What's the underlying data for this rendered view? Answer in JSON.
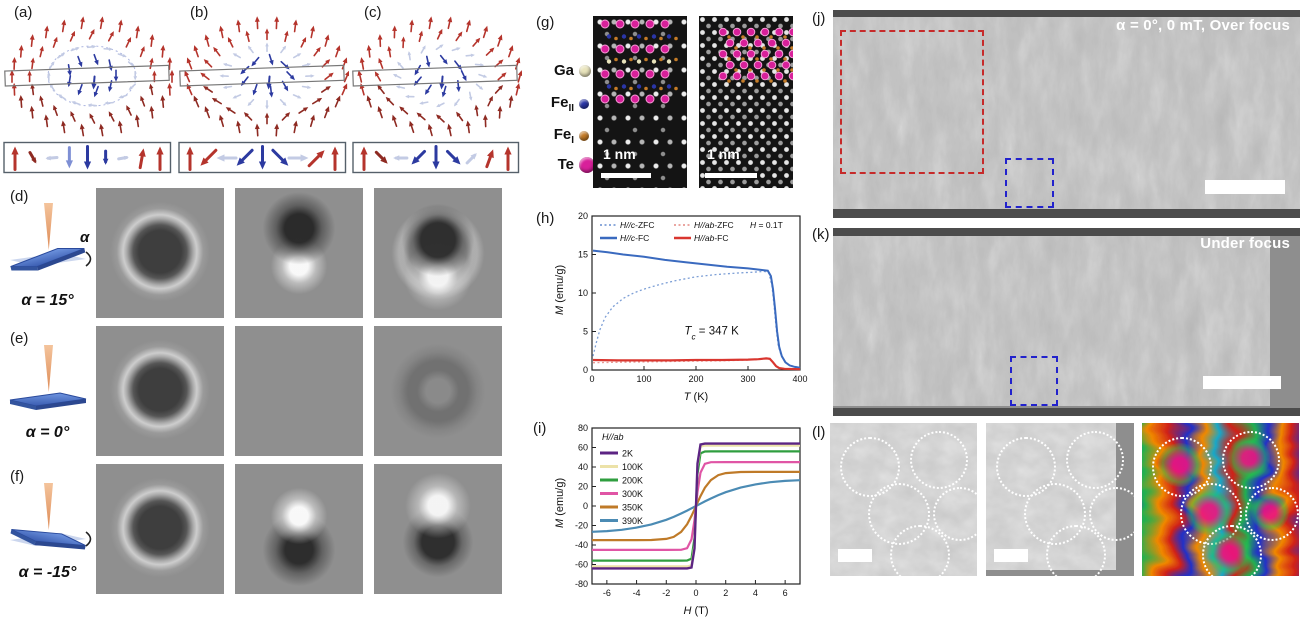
{
  "labels": {
    "a": "(a)",
    "b": "(b)",
    "c": "(c)",
    "d": "(d)",
    "e": "(e)",
    "f": "(f)",
    "g": "(g)",
    "h": "(h)",
    "i": "(i)",
    "j": "(j)",
    "k": "(k)",
    "l": "(l)"
  },
  "colors": {
    "arrow_red": "#b5342c",
    "arrow_darkred": "#8e2a22",
    "arrow_blue": "#2c3aa0",
    "arrow_lightblue": "#7e8fd4",
    "arrow_faint": "#c3cbe4",
    "slab_blue": "#4a72c4",
    "beam_orange": "#e8a070",
    "box_red": "#c62a2a",
    "box_blue": "#2222cc"
  },
  "spin_panels": [
    {
      "id": "a",
      "type": "bloch",
      "strip": [
        {
          "ang": 0,
          "c": "red",
          "s": 1
        },
        {
          "ang": 150,
          "c": "darkred",
          "s": 0.55
        },
        {
          "ang": 265,
          "c": "faint",
          "s": 0.5
        },
        {
          "ang": 180,
          "c": "lightblue",
          "s": 0.9
        },
        {
          "ang": 180,
          "c": "blue",
          "s": 1
        },
        {
          "ang": 180,
          "c": "blue",
          "s": 0.6
        },
        {
          "ang": 80,
          "c": "faint",
          "s": 0.45
        },
        {
          "ang": 10,
          "c": "red",
          "s": 0.85
        },
        {
          "ang": 0,
          "c": "red",
          "s": 1
        }
      ]
    },
    {
      "id": "b",
      "type": "neel",
      "strip": [
        {
          "ang": 0,
          "c": "red",
          "s": 1
        },
        {
          "ang": 225,
          "c": "red",
          "s": 0.95
        },
        {
          "ang": 270,
          "c": "faint",
          "s": 0.85
        },
        {
          "ang": 225,
          "c": "blue",
          "s": 0.95
        },
        {
          "ang": 180,
          "c": "blue",
          "s": 1
        },
        {
          "ang": 135,
          "c": "blue",
          "s": 0.95
        },
        {
          "ang": 90,
          "c": "faint",
          "s": 0.85
        },
        {
          "ang": 45,
          "c": "red",
          "s": 0.95
        },
        {
          "ang": 0,
          "c": "red",
          "s": 1
        }
      ]
    },
    {
      "id": "c",
      "type": "tilted",
      "strip": [
        {
          "ang": 0,
          "c": "red",
          "s": 1
        },
        {
          "ang": 135,
          "c": "darkred",
          "s": 0.7
        },
        {
          "ang": 270,
          "c": "faint",
          "s": 0.6
        },
        {
          "ang": 225,
          "c": "blue",
          "s": 0.8
        },
        {
          "ang": 180,
          "c": "blue",
          "s": 1
        },
        {
          "ang": 135,
          "c": "blue",
          "s": 0.8
        },
        {
          "ang": 45,
          "c": "faint",
          "s": 0.6
        },
        {
          "ang": 20,
          "c": "red",
          "s": 0.8
        },
        {
          "ang": 0,
          "c": "red",
          "s": 1
        }
      ]
    }
  ],
  "tilt_rows": [
    {
      "label": "(d)",
      "alpha_text": "α = 15°",
      "alpha_symbol": "α",
      "tilt_deg": -13
    },
    {
      "label": "(e)",
      "alpha_text": "α = 0°",
      "alpha_symbol": "",
      "tilt_deg": 0
    },
    {
      "label": "(f)",
      "alpha_text": "α = -15°",
      "alpha_symbol": "",
      "tilt_deg": 13
    }
  ],
  "sim_grid": [
    [
      "ring",
      "dipole-dark-top",
      "ring-dark-top"
    ],
    [
      "ring",
      "flat",
      "donut-faint"
    ],
    [
      "ring",
      "dipole-bright-top",
      "ring-bright-top"
    ]
  ],
  "stem": {
    "atoms": [
      {
        "name": "Ga",
        "sub": "",
        "color": "#e9e4bc"
      },
      {
        "name": "Fe",
        "sub": "II",
        "color": "#2b36a8"
      },
      {
        "name": "Fe",
        "sub": "I",
        "color": "#c57c28"
      },
      {
        "name": "Te",
        "sub": "",
        "color": "#d8209a"
      }
    ],
    "scalebar_left": "1 nm",
    "scalebar_right": "1 nm"
  },
  "chart_data": [
    {
      "type": "line",
      "id": "h",
      "x_range": [
        0,
        400
      ],
      "y_range": [
        0,
        20
      ],
      "x_ticks": [
        0,
        100,
        200,
        300,
        400
      ],
      "y_ticks": [
        0,
        5,
        10,
        15,
        20
      ],
      "xlabel_parts": [
        [
          "T",
          "i"
        ],
        [
          " (K)",
          "n"
        ]
      ],
      "ylabel_parts": [
        [
          "M",
          "i"
        ],
        [
          " (emu/g)",
          "n"
        ]
      ],
      "legend": {
        "layout": "grid2",
        "note_parts": [
          [
            "H",
            "i"
          ],
          [
            " = 0.1T",
            "n"
          ]
        ]
      },
      "annotations": [
        {
          "x": 230,
          "y": 4.6,
          "parts": [
            [
              "T",
              "i"
            ],
            [
              "c",
              "sub"
            ],
            [
              " = 347 K",
              "n"
            ]
          ]
        }
      ],
      "series": [
        {
          "parts": [
            [
              "H//c",
              "i"
            ],
            [
              "-ZFC",
              "n"
            ]
          ],
          "color": "#7d9fd6",
          "dash": "2 2.5",
          "lw": 1.3,
          "legend_cell": [
            0,
            0
          ],
          "points": [
            [
              2,
              1.8
            ],
            [
              8,
              3.5
            ],
            [
              15,
              5.2
            ],
            [
              25,
              6.8
            ],
            [
              40,
              8.2
            ],
            [
              60,
              9.3
            ],
            [
              80,
              10.0
            ],
            [
              100,
              10.5
            ],
            [
              130,
              11.1
            ],
            [
              160,
              11.6
            ],
            [
              200,
              12.1
            ],
            [
              240,
              12.4
            ],
            [
              280,
              12.6
            ],
            [
              310,
              12.7
            ],
            [
              332,
              12.8
            ],
            [
              340,
              12.6
            ],
            [
              346,
              11.0
            ],
            [
              350,
              8.5
            ],
            [
              354,
              5.5
            ],
            [
              358,
              3.2
            ],
            [
              364,
              1.8
            ],
            [
              372,
              1.0
            ],
            [
              380,
              0.6
            ],
            [
              400,
              0.3
            ]
          ]
        },
        {
          "parts": [
            [
              "H//ab",
              "i"
            ],
            [
              "-ZFC",
              "n"
            ]
          ],
          "color": "#e89a94",
          "dash": "2 2.5",
          "lw": 1.3,
          "legend_cell": [
            1,
            0
          ],
          "points": [
            [
              2,
              0.95
            ],
            [
              50,
              1.0
            ],
            [
              100,
              1.05
            ],
            [
              150,
              1.1
            ],
            [
              200,
              1.15
            ],
            [
              250,
              1.2
            ],
            [
              300,
              1.3
            ],
            [
              320,
              1.35
            ],
            [
              335,
              1.45
            ],
            [
              342,
              1.4
            ],
            [
              348,
              1.0
            ],
            [
              354,
              0.5
            ],
            [
              360,
              0.25
            ],
            [
              370,
              0.15
            ],
            [
              400,
              0.1
            ]
          ]
        },
        {
          "parts": [
            [
              "H//c",
              "i"
            ],
            [
              "-FC",
              "n"
            ]
          ],
          "color": "#3a6abf",
          "dash": "",
          "lw": 2,
          "legend_cell": [
            0,
            1
          ],
          "points": [
            [
              2,
              15.5
            ],
            [
              30,
              15.3
            ],
            [
              60,
              15.0
            ],
            [
              100,
              14.7
            ],
            [
              140,
              14.3
            ],
            [
              180,
              14.0
            ],
            [
              220,
              13.7
            ],
            [
              260,
              13.4
            ],
            [
              300,
              13.2
            ],
            [
              325,
              13.0
            ],
            [
              338,
              12.9
            ],
            [
              344,
              12.2
            ],
            [
              348,
              10.5
            ],
            [
              352,
              8.0
            ],
            [
              356,
              5.0
            ],
            [
              360,
              3.0
            ],
            [
              365,
              1.8
            ],
            [
              372,
              1.0
            ],
            [
              380,
              0.6
            ],
            [
              390,
              0.4
            ],
            [
              400,
              0.3
            ]
          ]
        },
        {
          "parts": [
            [
              "H//ab",
              "i"
            ],
            [
              "-FC",
              "n"
            ]
          ],
          "color": "#d9362f",
          "dash": "",
          "lw": 2.2,
          "legend_cell": [
            1,
            1
          ],
          "points": [
            [
              2,
              1.3
            ],
            [
              50,
              1.25
            ],
            [
              100,
              1.25
            ],
            [
              150,
              1.25
            ],
            [
              200,
              1.3
            ],
            [
              250,
              1.3
            ],
            [
              300,
              1.35
            ],
            [
              320,
              1.4
            ],
            [
              335,
              1.5
            ],
            [
              342,
              1.45
            ],
            [
              348,
              1.0
            ],
            [
              354,
              0.5
            ],
            [
              360,
              0.25
            ],
            [
              370,
              0.15
            ],
            [
              400,
              0.1
            ]
          ]
        }
      ]
    },
    {
      "type": "line",
      "id": "i",
      "x_range": [
        -7,
        7
      ],
      "y_range": [
        -80,
        80
      ],
      "x_ticks": [
        -6,
        -4,
        -2,
        0,
        2,
        4,
        6
      ],
      "y_ticks": [
        -80,
        -60,
        -40,
        -20,
        0,
        20,
        40,
        60,
        80
      ],
      "xlabel_parts": [
        [
          "H",
          "i"
        ],
        [
          " (T)",
          "n"
        ]
      ],
      "ylabel_parts": [
        [
          "M",
          "i"
        ],
        [
          " (emu/g)",
          "n"
        ]
      ],
      "legend": {
        "layout": "col",
        "title_parts": [
          [
            "H//ab",
            "i"
          ]
        ]
      },
      "annotations": [],
      "series": [
        {
          "parts": [
            [
              "390K",
              "n"
            ]
          ],
          "color": "#4b8bb4",
          "dash": "",
          "lw": 2.2,
          "points": [
            [
              -7,
              -26.5
            ],
            [
              -6,
              -25.7
            ],
            [
              -5,
              -24.4
            ],
            [
              -4,
              -22.2
            ],
            [
              -3,
              -18.9
            ],
            [
              -2,
              -14.2
            ],
            [
              -1.5,
              -11.2
            ],
            [
              -1,
              -7.7
            ],
            [
              -0.6,
              -4.7
            ],
            [
              -0.3,
              -2.4
            ],
            [
              0,
              0
            ],
            [
              0.3,
              2.4
            ],
            [
              0.6,
              4.7
            ],
            [
              1,
              7.7
            ],
            [
              1.5,
              11.2
            ],
            [
              2,
              14.2
            ],
            [
              3,
              18.9
            ],
            [
              4,
              22.2
            ],
            [
              5,
              24.4
            ],
            [
              6,
              25.7
            ],
            [
              7,
              26.5
            ]
          ]
        },
        {
          "parts": [
            [
              "350K",
              "n"
            ]
          ],
          "color": "#bf7a28",
          "dash": "",
          "lw": 2.2,
          "points": [
            [
              -7,
              -35
            ],
            [
              -5,
              -35
            ],
            [
              -4,
              -35
            ],
            [
              -3,
              -34.9
            ],
            [
              -2,
              -33.7
            ],
            [
              -1.5,
              -31.7
            ],
            [
              -1,
              -26.6
            ],
            [
              -0.6,
              -18.8
            ],
            [
              -0.3,
              -10.2
            ],
            [
              -0.1,
              -3.5
            ],
            [
              0,
              0
            ],
            [
              0.1,
              3.5
            ],
            [
              0.3,
              10.2
            ],
            [
              0.6,
              18.8
            ],
            [
              1,
              26.6
            ],
            [
              1.5,
              31.7
            ],
            [
              2,
              33.7
            ],
            [
              3,
              34.9
            ],
            [
              4,
              35
            ],
            [
              7,
              35
            ]
          ]
        },
        {
          "parts": [
            [
              "300K",
              "n"
            ]
          ],
          "color": "#e055a5",
          "dash": "",
          "lw": 2.2,
          "points": [
            [
              -7,
              -45
            ],
            [
              -2,
              -45
            ],
            [
              -1,
              -44.9
            ],
            [
              -0.6,
              -43.3
            ],
            [
              -0.3,
              -34.3
            ],
            [
              -0.1,
              -14.5
            ],
            [
              0,
              0
            ],
            [
              0.1,
              14.5
            ],
            [
              0.3,
              34.3
            ],
            [
              0.6,
              43.3
            ],
            [
              1,
              44.9
            ],
            [
              2,
              45
            ],
            [
              7,
              45
            ]
          ]
        },
        {
          "parts": [
            [
              "200K",
              "n"
            ]
          ],
          "color": "#2f9e3f",
          "dash": "",
          "lw": 2.2,
          "points": [
            [
              -7,
              -56
            ],
            [
              -1,
              -56
            ],
            [
              -0.6,
              -55.9
            ],
            [
              -0.3,
              -54.0
            ],
            [
              -0.1,
              -32.7
            ],
            [
              0,
              0
            ],
            [
              0.1,
              32.7
            ],
            [
              0.3,
              54.0
            ],
            [
              0.6,
              55.9
            ],
            [
              1,
              56
            ],
            [
              7,
              56
            ]
          ]
        },
        {
          "parts": [
            [
              "100K",
              "n"
            ]
          ],
          "color": "#ece2a8",
          "dash": "",
          "lw": 2.2,
          "points": [
            [
              -7,
              -62
            ],
            [
              -1,
              -62
            ],
            [
              -0.6,
              -61.9
            ],
            [
              -0.3,
              -60.8
            ],
            [
              -0.1,
              -40.1
            ],
            [
              0,
              0
            ],
            [
              0.1,
              40.1
            ],
            [
              0.3,
              60.8
            ],
            [
              0.6,
              61.9
            ],
            [
              1,
              62
            ],
            [
              7,
              62
            ]
          ]
        },
        {
          "parts": [
            [
              "2K",
              "n"
            ]
          ],
          "color": "#5c2483",
          "dash": "",
          "lw": 2.4,
          "points": [
            [
              -7,
              -64
            ],
            [
              -1,
              -64
            ],
            [
              -0.6,
              -64
            ],
            [
              -0.3,
              -63.1
            ],
            [
              -0.1,
              -43.6
            ],
            [
              0,
              0
            ],
            [
              0.1,
              43.6
            ],
            [
              0.3,
              63.1
            ],
            [
              0.6,
              64
            ],
            [
              1,
              64
            ],
            [
              7,
              64
            ]
          ]
        }
      ],
      "legend_order": [
        5,
        4,
        3,
        2,
        1,
        0
      ]
    }
  ],
  "ltem": {
    "j": {
      "caption": "α = 0°, 0 mT, Over focus"
    },
    "k": {
      "caption": "Under focus"
    }
  }
}
